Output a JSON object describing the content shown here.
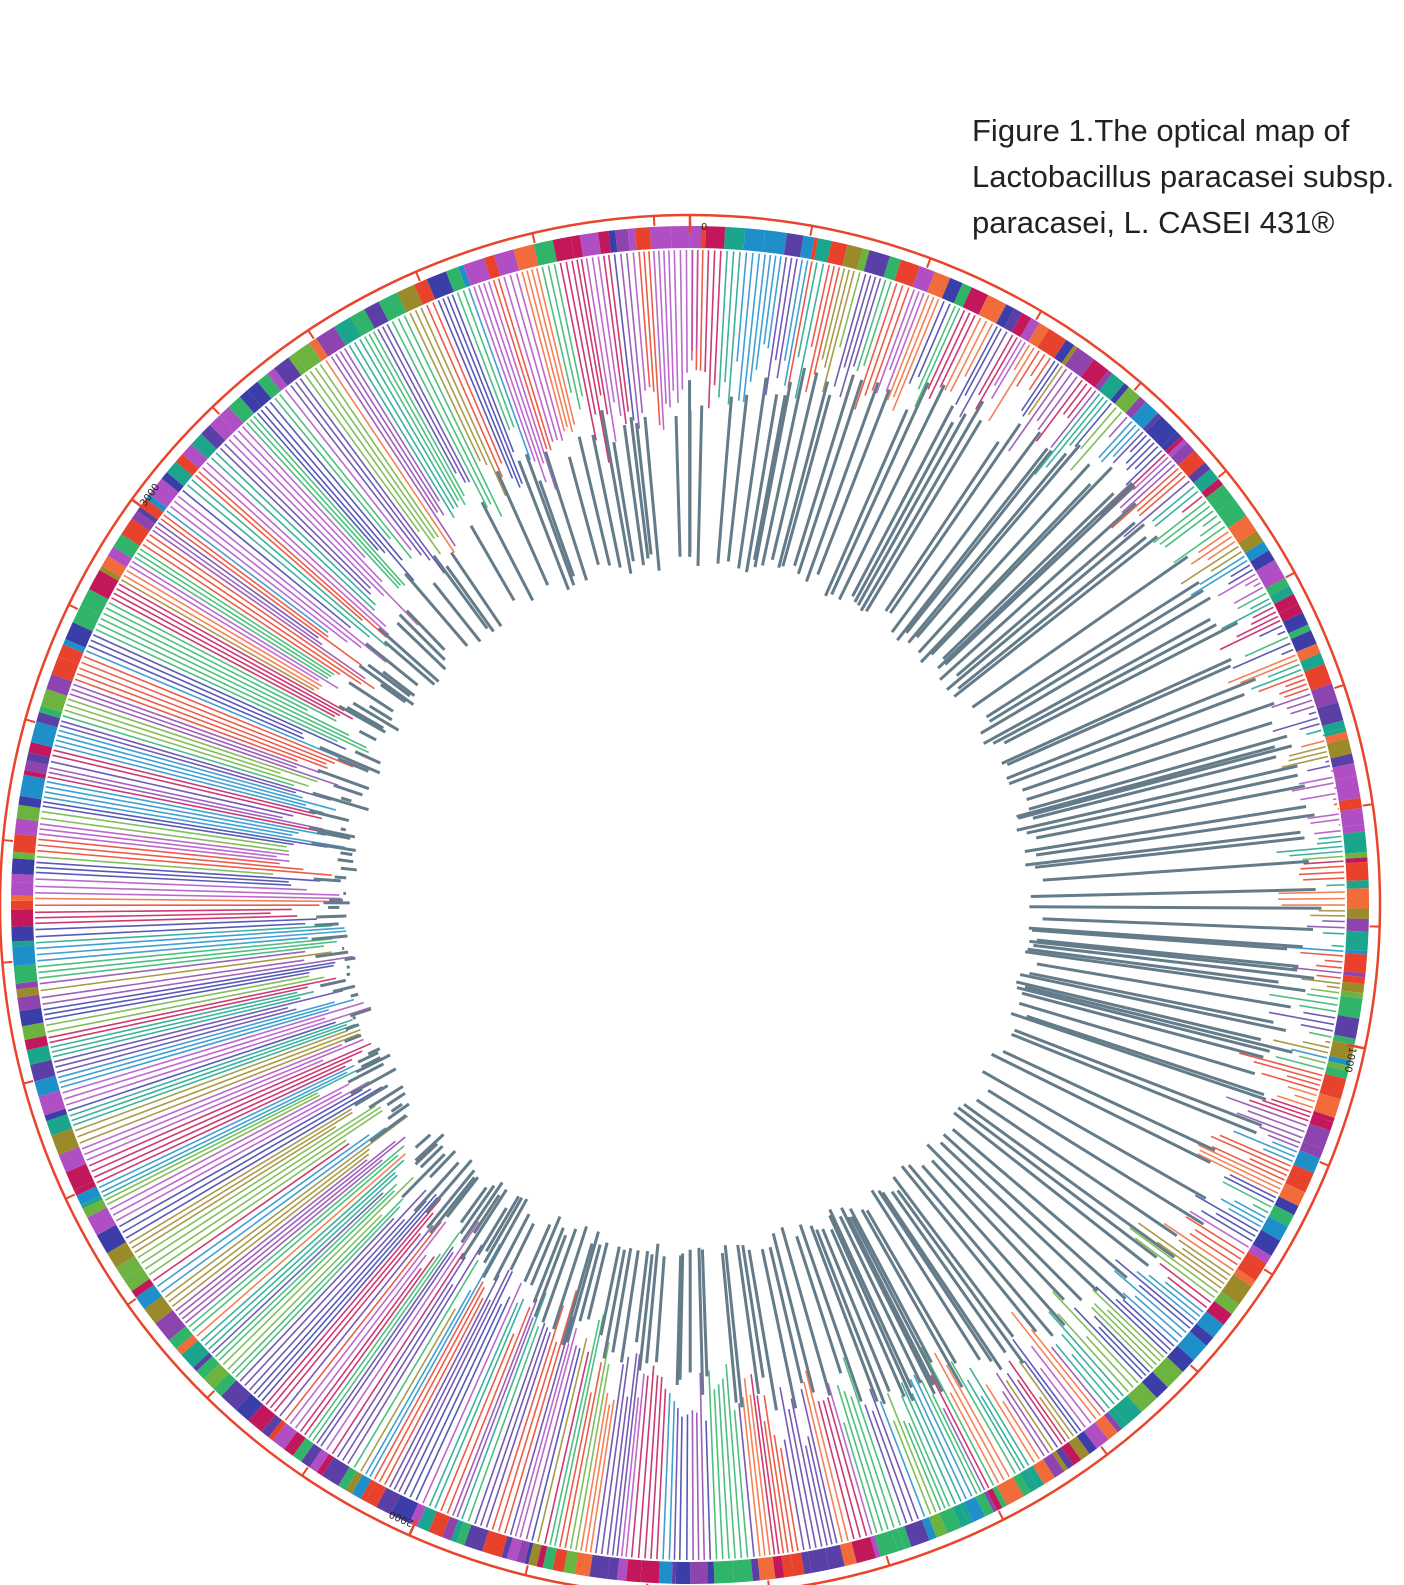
{
  "title": [
    "Figure 1.The optical map of",
    "Lactobacillus paracasei subsp.",
    "paracasei, L. CASEI 431®"
  ],
  "scale": {
    "ticks": [
      0,
      1000,
      2000,
      3000
    ]
  }
}
